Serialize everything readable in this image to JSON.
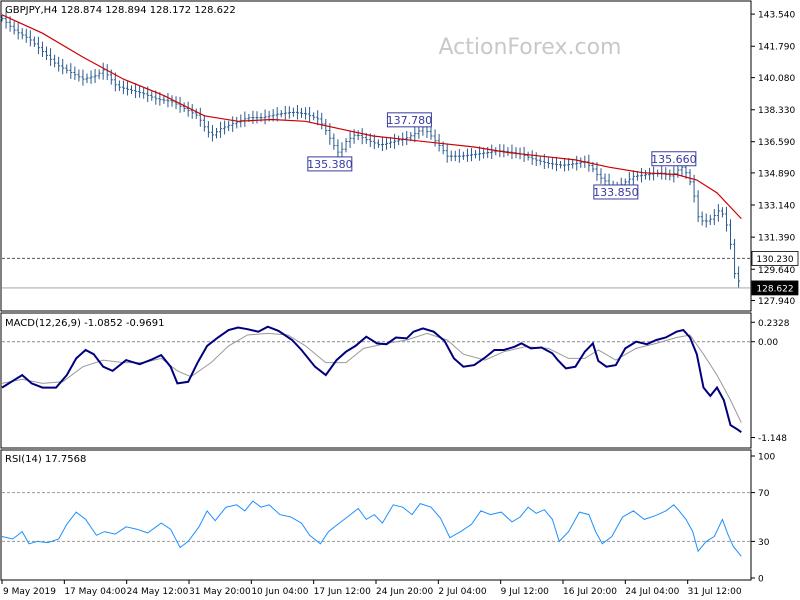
{
  "watermark": "ActionForex.com",
  "chart_data": {
    "type": "line",
    "x_tick_labels": [
      "9 May 2019",
      "17 May 04:00",
      "24 May 12:00",
      "31 May 20:00",
      "10 Jun 04:00",
      "17 Jun 12:00",
      "24 Jun 20:00",
      "2 Jul 04:00",
      "9 Jul 12:00",
      "16 Jul 20:00",
      "24 Jul 04:00",
      "31 Jul 12:00"
    ],
    "price": {
      "title": "GBPJPY,H4  128.874 128.894 128.172 128.622",
      "type": "bar",
      "ylim": [
        127.42,
        144.2
      ],
      "y_tick_labels": [
        "143.540",
        "141.790",
        "140.080",
        "138.330",
        "136.590",
        "134.890",
        "133.140",
        "131.390",
        "129.640",
        "127.940"
      ],
      "y_ticks": [
        143.54,
        141.79,
        140.08,
        138.33,
        136.59,
        134.89,
        133.14,
        131.39,
        129.64,
        127.94
      ],
      "close_path": [
        [
          0,
          143.3
        ],
        [
          10,
          142.6
        ],
        [
          20,
          142.2
        ],
        [
          30,
          141.5
        ],
        [
          40,
          140.8
        ],
        [
          50,
          140.4
        ],
        [
          60,
          140.0
        ],
        [
          70,
          140.2
        ],
        [
          75,
          140.5
        ],
        [
          85,
          139.6
        ],
        [
          95,
          139.4
        ],
        [
          105,
          139.2
        ],
        [
          115,
          138.9
        ],
        [
          125,
          138.8
        ],
        [
          135,
          138.4
        ],
        [
          145,
          138.0
        ],
        [
          150,
          137.4
        ],
        [
          155,
          136.9
        ],
        [
          162,
          137.3
        ],
        [
          172,
          137.6
        ],
        [
          182,
          137.9
        ],
        [
          192,
          137.9
        ],
        [
          205,
          138.1
        ],
        [
          215,
          138.2
        ],
        [
          225,
          138.1
        ],
        [
          235,
          137.8
        ],
        [
          240,
          137.2
        ],
        [
          245,
          136.5
        ],
        [
          250,
          135.9
        ],
        [
          255,
          136.6
        ],
        [
          262,
          137.0
        ],
        [
          270,
          136.7
        ],
        [
          280,
          136.4
        ],
        [
          290,
          136.6
        ],
        [
          300,
          136.8
        ],
        [
          308,
          137.1
        ],
        [
          312,
          137.4
        ],
        [
          318,
          136.9
        ],
        [
          325,
          136.3
        ],
        [
          330,
          135.8
        ],
        [
          340,
          135.8
        ],
        [
          350,
          135.9
        ],
        [
          360,
          136.0
        ],
        [
          368,
          136.1
        ],
        [
          378,
          136.0
        ],
        [
          385,
          135.9
        ],
        [
          395,
          135.6
        ],
        [
          405,
          135.4
        ],
        [
          415,
          135.3
        ],
        [
          425,
          135.4
        ],
        [
          432,
          135.5
        ],
        [
          438,
          135.1
        ],
        [
          442,
          134.7
        ],
        [
          448,
          134.4
        ],
        [
          453,
          133.9
        ],
        [
          460,
          134.3
        ],
        [
          468,
          134.7
        ],
        [
          478,
          134.8
        ],
        [
          488,
          134.9
        ],
        [
          496,
          134.7
        ],
        [
          500,
          135.0
        ],
        [
          504,
          135.2
        ],
        [
          508,
          134.8
        ],
        [
          512,
          134.0
        ],
        [
          516,
          132.5
        ],
        [
          520,
          132.2
        ],
        [
          526,
          132.4
        ],
        [
          532,
          132.9
        ],
        [
          536,
          132.4
        ],
        [
          540,
          131.0
        ],
        [
          543,
          129.4
        ],
        [
          546,
          129.0
        ],
        [
          548,
          128.622
        ]
      ],
      "ma_path": [
        [
          0,
          143.5
        ],
        [
          30,
          142.5
        ],
        [
          60,
          141.2
        ],
        [
          90,
          140.0
        ],
        [
          120,
          139.1
        ],
        [
          150,
          138.0
        ],
        [
          175,
          137.7
        ],
        [
          200,
          137.8
        ],
        [
          225,
          137.7
        ],
        [
          250,
          137.3
        ],
        [
          275,
          136.9
        ],
        [
          300,
          136.7
        ],
        [
          325,
          136.5
        ],
        [
          350,
          136.3
        ],
        [
          375,
          136.0
        ],
        [
          400,
          135.8
        ],
        [
          425,
          135.6
        ],
        [
          450,
          135.2
        ],
        [
          475,
          134.9
        ],
        [
          500,
          134.8
        ],
        [
          515,
          134.5
        ],
        [
          530,
          133.8
        ],
        [
          548,
          132.4
        ]
      ],
      "labels": [
        {
          "text": "137.780",
          "x": 302,
          "y": 137.78
        },
        {
          "text": "135.380",
          "x": 243,
          "y": 135.38
        },
        {
          "text": "135.660",
          "x": 498,
          "y": 135.66
        },
        {
          "text": "133.850",
          "x": 455,
          "y": 133.85
        }
      ],
      "hline_level": 130.23,
      "hline_label": "130.230",
      "current_price": 128.622,
      "current_price_label": "128.622",
      "line_colors": {
        "bars": "#2a5a8c",
        "ma": "#cc0000",
        "hline": "#555555",
        "price_tag": "#000000"
      }
    },
    "macd": {
      "title": "MACD(12,26,9) -1.0852 -0.9691",
      "ylim": [
        -1.25,
        0.32
      ],
      "y_tick_labels": [
        "0.2328",
        "0.00",
        "-1.148"
      ],
      "y_ticks": [
        0.2328,
        0.0,
        -1.148
      ],
      "zero_line": 0.0,
      "macd_path": [
        [
          0,
          -0.55
        ],
        [
          10,
          -0.45
        ],
        [
          15,
          -0.4
        ],
        [
          22,
          -0.5
        ],
        [
          30,
          -0.55
        ],
        [
          40,
          -0.55
        ],
        [
          48,
          -0.4
        ],
        [
          55,
          -0.2
        ],
        [
          62,
          -0.1
        ],
        [
          68,
          -0.15
        ],
        [
          75,
          -0.3
        ],
        [
          82,
          -0.35
        ],
        [
          92,
          -0.22
        ],
        [
          102,
          -0.27
        ],
        [
          110,
          -0.22
        ],
        [
          118,
          -0.16
        ],
        [
          125,
          -0.3
        ],
        [
          130,
          -0.5
        ],
        [
          138,
          -0.48
        ],
        [
          145,
          -0.25
        ],
        [
          152,
          -0.05
        ],
        [
          160,
          0.05
        ],
        [
          168,
          0.14
        ],
        [
          175,
          0.17
        ],
        [
          182,
          0.15
        ],
        [
          190,
          0.12
        ],
        [
          197,
          0.18
        ],
        [
          205,
          0.13
        ],
        [
          215,
          0.02
        ],
        [
          222,
          -0.1
        ],
        [
          232,
          -0.3
        ],
        [
          240,
          -0.4
        ],
        [
          248,
          -0.22
        ],
        [
          255,
          -0.12
        ],
        [
          262,
          -0.05
        ],
        [
          270,
          0.06
        ],
        [
          278,
          -0.02
        ],
        [
          285,
          -0.03
        ],
        [
          292,
          0.05
        ],
        [
          300,
          0.04
        ],
        [
          305,
          0.12
        ],
        [
          312,
          0.16
        ],
        [
          320,
          0.12
        ],
        [
          328,
          0.01
        ],
        [
          335,
          -0.2
        ],
        [
          342,
          -0.3
        ],
        [
          350,
          -0.28
        ],
        [
          358,
          -0.19
        ],
        [
          365,
          -0.1
        ],
        [
          372,
          -0.1
        ],
        [
          380,
          -0.06
        ],
        [
          385,
          -0.02
        ],
        [
          392,
          -0.08
        ],
        [
          400,
          -0.07
        ],
        [
          408,
          -0.14
        ],
        [
          412,
          -0.22
        ],
        [
          418,
          -0.32
        ],
        [
          425,
          -0.3
        ],
        [
          432,
          -0.12
        ],
        [
          438,
          -0.02
        ],
        [
          442,
          -0.23
        ],
        [
          448,
          -0.3
        ],
        [
          455,
          -0.28
        ],
        [
          462,
          -0.08
        ],
        [
          470,
          0.0
        ],
        [
          478,
          -0.03
        ],
        [
          485,
          0.02
        ],
        [
          492,
          0.05
        ],
        [
          500,
          0.12
        ],
        [
          505,
          0.14
        ],
        [
          510,
          0.05
        ],
        [
          515,
          -0.15
        ],
        [
          520,
          -0.55
        ],
        [
          525,
          -0.65
        ],
        [
          530,
          -0.55
        ],
        [
          535,
          -0.7
        ],
        [
          540,
          -1.0
        ],
        [
          545,
          -1.05
        ],
        [
          548,
          -1.0852
        ]
      ],
      "signal_path": [
        [
          0,
          -0.5
        ],
        [
          15,
          -0.45
        ],
        [
          30,
          -0.5
        ],
        [
          45,
          -0.48
        ],
        [
          60,
          -0.3
        ],
        [
          75,
          -0.22
        ],
        [
          90,
          -0.25
        ],
        [
          105,
          -0.25
        ],
        [
          118,
          -0.2
        ],
        [
          130,
          -0.35
        ],
        [
          140,
          -0.42
        ],
        [
          155,
          -0.25
        ],
        [
          168,
          -0.05
        ],
        [
          182,
          0.08
        ],
        [
          197,
          0.1
        ],
        [
          212,
          0.08
        ],
        [
          225,
          -0.05
        ],
        [
          240,
          -0.25
        ],
        [
          255,
          -0.25
        ],
        [
          268,
          -0.08
        ],
        [
          285,
          -0.02
        ],
        [
          300,
          0.02
        ],
        [
          315,
          0.1
        ],
        [
          330,
          0.02
        ],
        [
          342,
          -0.15
        ],
        [
          358,
          -0.22
        ],
        [
          372,
          -0.12
        ],
        [
          388,
          -0.06
        ],
        [
          405,
          -0.08
        ],
        [
          420,
          -0.2
        ],
        [
          432,
          -0.2
        ],
        [
          442,
          -0.1
        ],
        [
          455,
          -0.22
        ],
        [
          470,
          -0.08
        ],
        [
          485,
          -0.02
        ],
        [
          500,
          0.05
        ],
        [
          510,
          0.08
        ],
        [
          520,
          -0.15
        ],
        [
          530,
          -0.4
        ],
        [
          540,
          -0.7
        ],
        [
          548,
          -0.9691
        ]
      ],
      "line_colors": {
        "macd": "#00007f",
        "signal": "#999999"
      }
    },
    "rsi": {
      "title": "RSI(14) 17.7568",
      "ylim": [
        0,
        100
      ],
      "y_tick_labels": [
        "100",
        "70",
        "30",
        "0"
      ],
      "y_ticks": [
        100,
        70,
        30,
        0
      ],
      "levels": [
        70,
        30
      ],
      "rsi_path": [
        [
          0,
          34
        ],
        [
          8,
          32
        ],
        [
          15,
          38
        ],
        [
          20,
          28
        ],
        [
          26,
          30
        ],
        [
          34,
          29
        ],
        [
          42,
          32
        ],
        [
          48,
          44
        ],
        [
          55,
          54
        ],
        [
          62,
          48
        ],
        [
          70,
          35
        ],
        [
          76,
          38
        ],
        [
          84,
          36
        ],
        [
          92,
          42
        ],
        [
          100,
          40
        ],
        [
          108,
          37
        ],
        [
          118,
          45
        ],
        [
          125,
          40
        ],
        [
          132,
          25
        ],
        [
          138,
          30
        ],
        [
          146,
          42
        ],
        [
          152,
          55
        ],
        [
          158,
          47
        ],
        [
          166,
          58
        ],
        [
          174,
          60
        ],
        [
          180,
          55
        ],
        [
          186,
          63
        ],
        [
          192,
          58
        ],
        [
          198,
          60
        ],
        [
          206,
          52
        ],
        [
          214,
          50
        ],
        [
          222,
          45
        ],
        [
          228,
          35
        ],
        [
          236,
          28
        ],
        [
          242,
          38
        ],
        [
          250,
          45
        ],
        [
          256,
          50
        ],
        [
          264,
          57
        ],
        [
          270,
          48
        ],
        [
          276,
          52
        ],
        [
          282,
          45
        ],
        [
          290,
          60
        ],
        [
          297,
          58
        ],
        [
          304,
          52
        ],
        [
          310,
          61
        ],
        [
          318,
          58
        ],
        [
          325,
          49
        ],
        [
          332,
          33
        ],
        [
          340,
          38
        ],
        [
          348,
          44
        ],
        [
          355,
          55
        ],
        [
          362,
          52
        ],
        [
          370,
          54
        ],
        [
          378,
          46
        ],
        [
          384,
          50
        ],
        [
          390,
          58
        ],
        [
          396,
          53
        ],
        [
          402,
          56
        ],
        [
          408,
          48
        ],
        [
          413,
          30
        ],
        [
          420,
          38
        ],
        [
          428,
          54
        ],
        [
          435,
          52
        ],
        [
          440,
          38
        ],
        [
          445,
          28
        ],
        [
          452,
          34
        ],
        [
          460,
          50
        ],
        [
          468,
          55
        ],
        [
          476,
          48
        ],
        [
          484,
          51
        ],
        [
          492,
          55
        ],
        [
          498,
          60
        ],
        [
          502,
          55
        ],
        [
          507,
          48
        ],
        [
          512,
          38
        ],
        [
          516,
          22
        ],
        [
          522,
          30
        ],
        [
          528,
          34
        ],
        [
          534,
          48
        ],
        [
          538,
          36
        ],
        [
          542,
          26
        ],
        [
          548,
          17.76
        ]
      ],
      "line_colors": {
        "rsi": "#1e90ff",
        "levels": "#999999"
      }
    }
  }
}
